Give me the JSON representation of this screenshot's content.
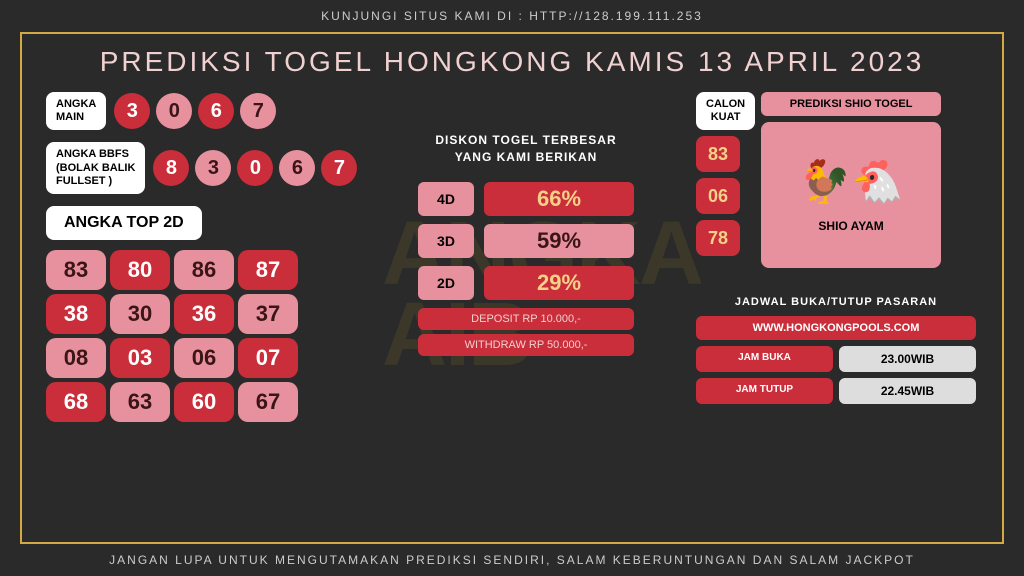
{
  "topbar": "KUNJUNGI SITUS KAMI DI : HTTP://128.199.111.253",
  "botbar": "JANGAN LUPA UNTUK MENGUTAMAKAN PREDIKSI SENDIRI, SALAM KEBERUNTUNGAN DAN SALAM JACKPOT",
  "title": "PREDIKSI TOGEL HONGKONG KAMIS 13 APRIL 2023",
  "angka_main_label": "ANGKA\nMAIN",
  "angka_main": [
    {
      "v": "3",
      "c": "r"
    },
    {
      "v": "0",
      "c": "p"
    },
    {
      "v": "6",
      "c": "r"
    },
    {
      "v": "7",
      "c": "p"
    }
  ],
  "bbfs_label": "ANGKA BBFS\n(BOLAK BALIK\nFULLSET )",
  "bbfs": [
    {
      "v": "8",
      "c": "r"
    },
    {
      "v": "3",
      "c": "p"
    },
    {
      "v": "0",
      "c": "r"
    },
    {
      "v": "6",
      "c": "p"
    },
    {
      "v": "7",
      "c": "r"
    }
  ],
  "top2d_label": "ANGKA TOP 2D",
  "top2d": [
    {
      "v": "83",
      "c": "p"
    },
    {
      "v": "80",
      "c": "r"
    },
    {
      "v": "86",
      "c": "p"
    },
    {
      "v": "87",
      "c": "r"
    },
    {
      "v": "38",
      "c": "r"
    },
    {
      "v": "30",
      "c": "p"
    },
    {
      "v": "36",
      "c": "r"
    },
    {
      "v": "37",
      "c": "p"
    },
    {
      "v": "08",
      "c": "p"
    },
    {
      "v": "03",
      "c": "r"
    },
    {
      "v": "06",
      "c": "p"
    },
    {
      "v": "07",
      "c": "r"
    },
    {
      "v": "68",
      "c": "r"
    },
    {
      "v": "63",
      "c": "p"
    },
    {
      "v": "60",
      "c": "r"
    },
    {
      "v": "67",
      "c": "p"
    }
  ],
  "diskon_title": "DISKON TOGEL TERBESAR\nYANG KAMI BERIKAN",
  "diskon": [
    {
      "label": "4D",
      "val": "66%",
      "c": "r"
    },
    {
      "label": "3D",
      "val": "59%",
      "c": "p"
    },
    {
      "label": "2D",
      "val": "29%",
      "c": "r"
    }
  ],
  "deposit": "DEPOSIT RP 10.000,-",
  "withdraw": "WITHDRAW RP 50.000,-",
  "calon_label": "CALON\nKUAT",
  "calon": [
    "83",
    "06",
    "78"
  ],
  "shio_label": "PREDIKSI SHIO TOGEL",
  "shio_name": "SHIO AYAM",
  "sched_title": "JADWAL BUKA/TUTUP PASARAN",
  "sched_site": "WWW.HONGKONGPOOLS.COM",
  "buka_l": "JAM BUKA",
  "buka_v": "23.00WIB",
  "tutup_l": "JAM TUTUP",
  "tutup_v": "22.45WIB"
}
